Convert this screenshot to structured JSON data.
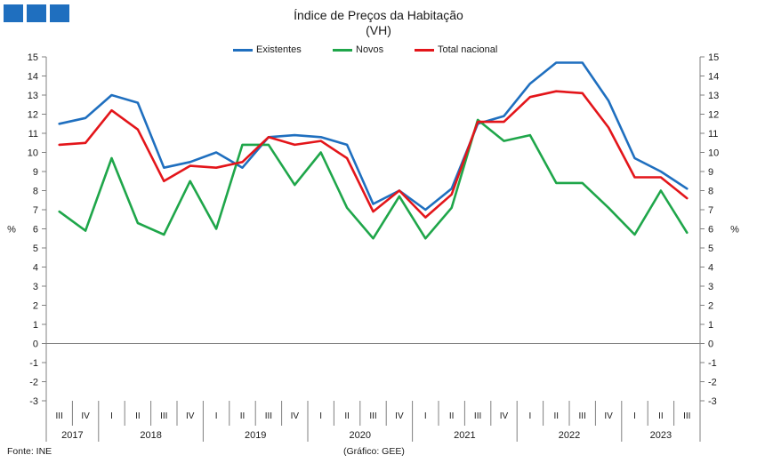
{
  "header": {
    "accent_color": "#1f6fbf"
  },
  "title": "Índice de Preços da Habitação",
  "subtitle": "(VH)",
  "footer": {
    "source": "Fonte: INE",
    "credit": "(Gráfico: GEE)"
  },
  "chart_data": {
    "type": "line",
    "ylabel": "%",
    "ylim": [
      -3,
      15
    ],
    "ytick_step": 1,
    "grid": false,
    "legend_position": "top-center",
    "quarters": [
      "III",
      "IV",
      "I",
      "II",
      "III",
      "IV",
      "I",
      "II",
      "III",
      "IV",
      "I",
      "II",
      "III",
      "IV",
      "I",
      "II",
      "III",
      "IV",
      "I",
      "II",
      "III",
      "IV",
      "I",
      "II",
      "III"
    ],
    "years": [
      {
        "label": "2017",
        "count": 2
      },
      {
        "label": "2018",
        "count": 4
      },
      {
        "label": "2019",
        "count": 4
      },
      {
        "label": "2020",
        "count": 4
      },
      {
        "label": "2021",
        "count": 4
      },
      {
        "label": "2022",
        "count": 4
      },
      {
        "label": "2023",
        "count": 3
      }
    ],
    "series": [
      {
        "name": "Existentes",
        "color": "#1f6fbf",
        "values": [
          11.5,
          11.8,
          13.0,
          12.6,
          9.2,
          9.5,
          10.0,
          9.2,
          10.8,
          10.9,
          10.8,
          10.4,
          7.3,
          8.0,
          7.0,
          8.1,
          11.5,
          11.9,
          13.6,
          14.7,
          14.7,
          12.7,
          9.7,
          9.0,
          8.1
        ]
      },
      {
        "name": "Novos",
        "color": "#1fa64a",
        "values": [
          6.9,
          5.9,
          9.7,
          6.3,
          5.7,
          8.5,
          6.0,
          10.4,
          10.4,
          8.3,
          10.0,
          7.1,
          5.5,
          7.7,
          5.5,
          7.1,
          11.7,
          10.6,
          10.9,
          8.4,
          8.4,
          7.1,
          5.7,
          8.0,
          5.8
        ]
      },
      {
        "name": "Total nacional",
        "color": "#e3151a",
        "values": [
          10.4,
          10.5,
          12.2,
          11.2,
          8.5,
          9.3,
          9.2,
          9.5,
          10.8,
          10.4,
          10.6,
          9.7,
          6.9,
          8.0,
          6.6,
          7.8,
          11.6,
          11.6,
          12.9,
          13.2,
          13.1,
          11.3,
          8.7,
          8.7,
          7.6
        ]
      }
    ]
  }
}
